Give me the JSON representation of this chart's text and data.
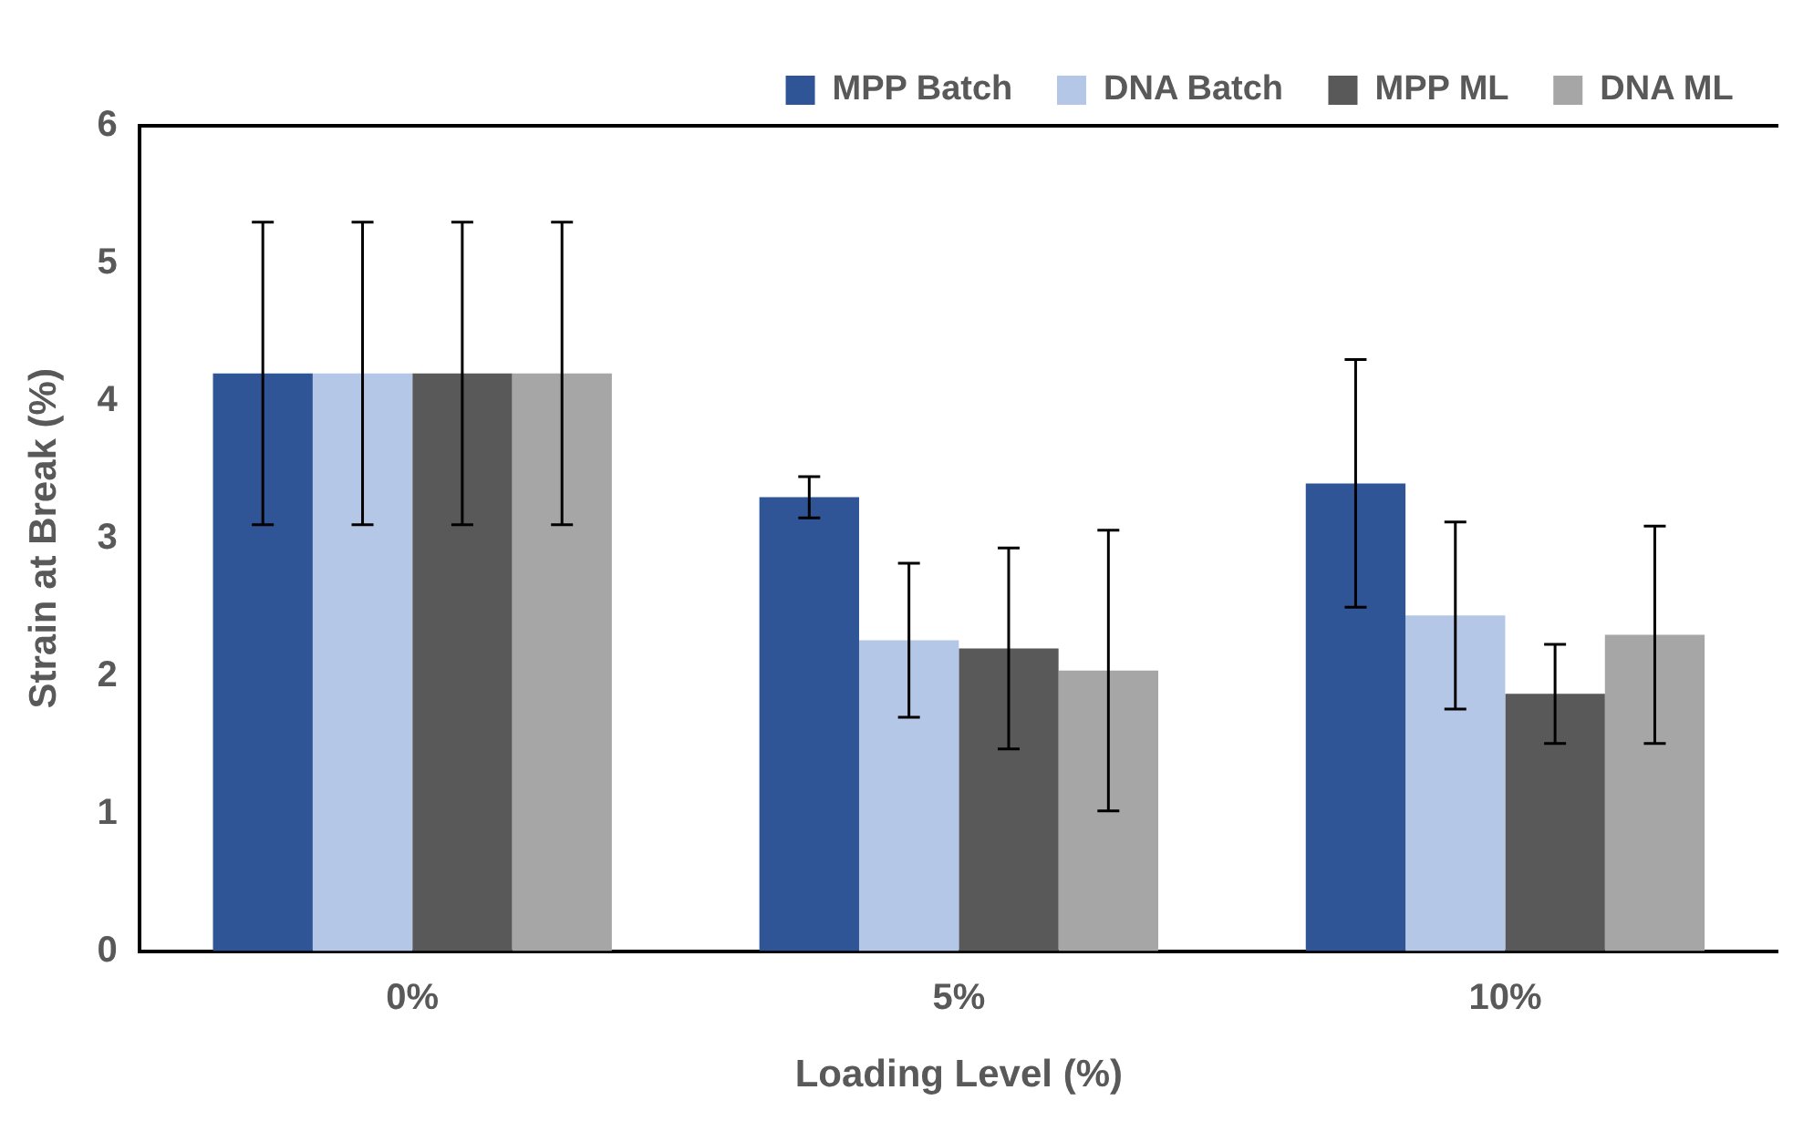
{
  "chart_data": {
    "type": "bar",
    "xlabel": "Loading Level (%)",
    "ylabel": "Strain at Break (%)",
    "categories": [
      "0%",
      "5%",
      "10%"
    ],
    "series": [
      {
        "name": "MPP Batch",
        "color": "#2f5597",
        "values": [
          4.2,
          3.3,
          3.4
        ],
        "errors": [
          1.1,
          0.15,
          0.9
        ]
      },
      {
        "name": "DNA Batch",
        "color": "#b4c7e7",
        "values": [
          4.2,
          2.26,
          2.44
        ],
        "errors": [
          1.1,
          0.56,
          0.68
        ]
      },
      {
        "name": "MPP ML",
        "color": "#595959",
        "values": [
          4.2,
          2.2,
          1.87
        ],
        "errors": [
          1.1,
          0.73,
          0.36
        ]
      },
      {
        "name": "DNA ML",
        "color": "#a6a6a6",
        "values": [
          4.2,
          2.04,
          2.3
        ],
        "errors": [
          1.1,
          1.02,
          0.79
        ]
      }
    ],
    "ylim": [
      0,
      6
    ],
    "yticks": [
      0,
      1,
      2,
      3,
      4,
      5,
      6
    ],
    "grid": false,
    "legend": "top right"
  }
}
